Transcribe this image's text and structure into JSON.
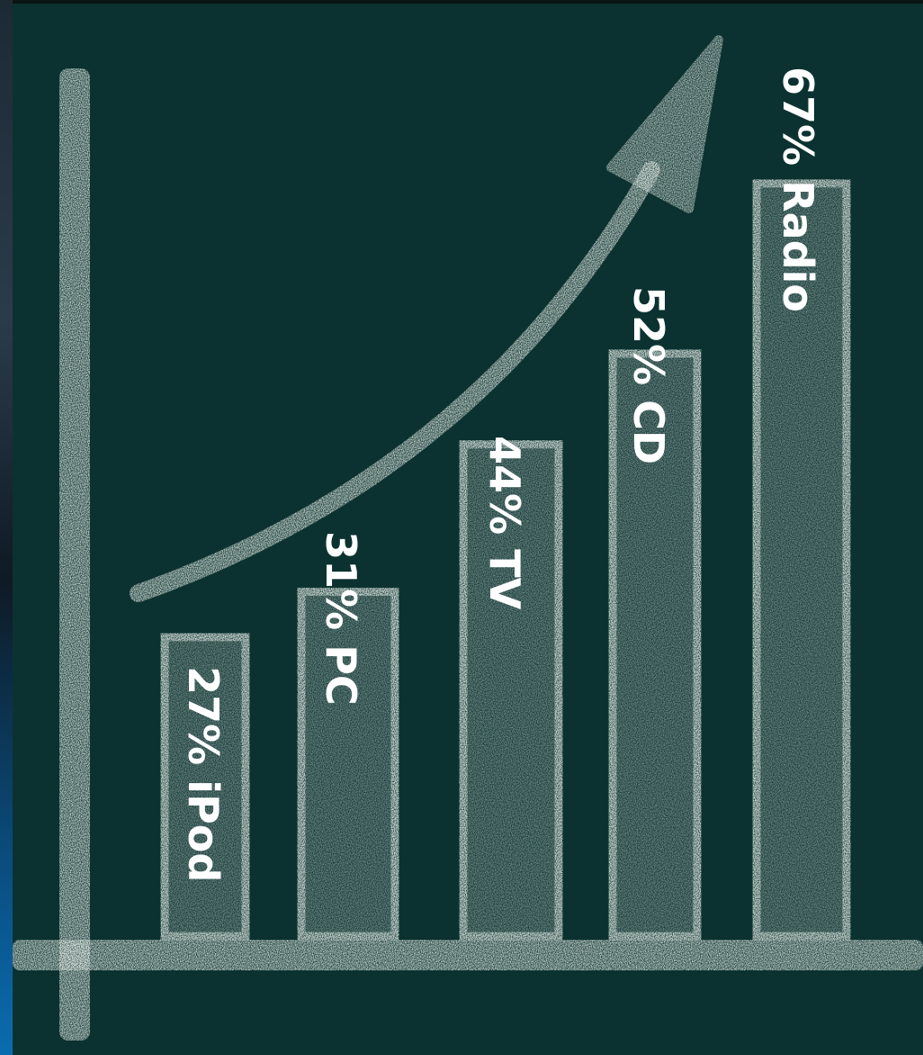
{
  "chart_data": {
    "type": "bar",
    "categories": [
      "iPod",
      "PC",
      "TV",
      "CD",
      "Radio"
    ],
    "values": [
      27,
      31,
      44,
      52,
      67
    ],
    "labels": [
      "27% iPod",
      "31% PC",
      "44% TV",
      "52% CD",
      "67% Radio"
    ],
    "title": "",
    "xlabel": "",
    "ylabel": "",
    "value_unit": "%",
    "trend_arrow": "up",
    "colors": {
      "board": "#0b3230",
      "chalk": "#e6ece6",
      "label_text": "#ffffff"
    }
  }
}
